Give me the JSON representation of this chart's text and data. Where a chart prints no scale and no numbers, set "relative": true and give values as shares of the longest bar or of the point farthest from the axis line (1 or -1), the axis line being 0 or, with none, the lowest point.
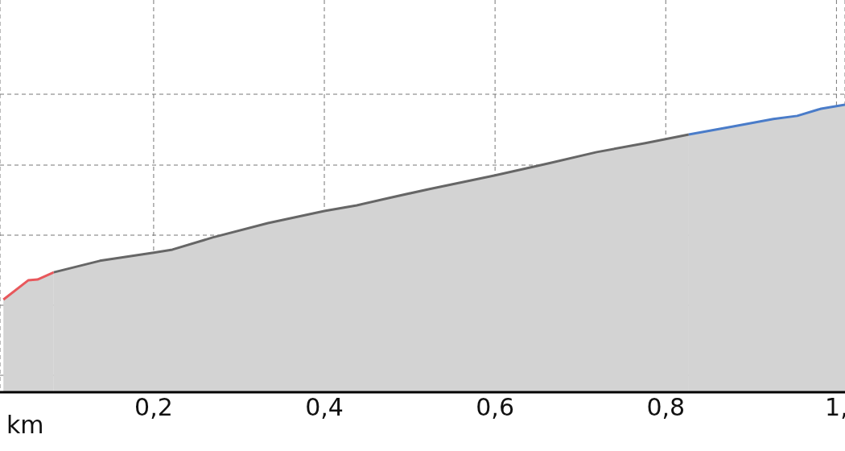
{
  "chart_data": {
    "type": "area",
    "xlabel": "km",
    "relative": true,
    "grid": true,
    "xlim": [
      0.02,
      1.01
    ],
    "xticks": [
      {
        "value": 0.2,
        "label": "0,2"
      },
      {
        "value": 0.4,
        "label": "0,4"
      },
      {
        "value": 0.6,
        "label": "0,6"
      },
      {
        "value": 0.8,
        "label": "0,8"
      },
      {
        "value": 1.0,
        "label": "1,"
      }
    ],
    "series": [
      {
        "color": "#e8585c",
        "x": [
          0.024,
          0.053,
          0.064,
          0.083
        ],
        "values": [
          0.322,
          0.389,
          0.392,
          0.417
        ]
      },
      {
        "color": "#666666",
        "x": [
          0.083,
          0.137,
          0.2,
          0.222,
          0.269,
          0.334,
          0.4,
          0.438,
          0.475,
          0.522,
          0.6,
          0.663,
          0.719,
          0.776,
          0.827
        ],
        "values": [
          0.417,
          0.457,
          0.485,
          0.496,
          0.538,
          0.588,
          0.63,
          0.65,
          0.675,
          0.706,
          0.754,
          0.796,
          0.835,
          0.866,
          0.896
        ]
      },
      {
        "color": "#4a7cc9",
        "x": [
          0.827,
          0.879,
          0.926,
          0.954,
          0.982,
          1.01
        ],
        "values": [
          0.896,
          0.924,
          0.95,
          0.961,
          0.986,
          1
        ]
      }
    ]
  }
}
